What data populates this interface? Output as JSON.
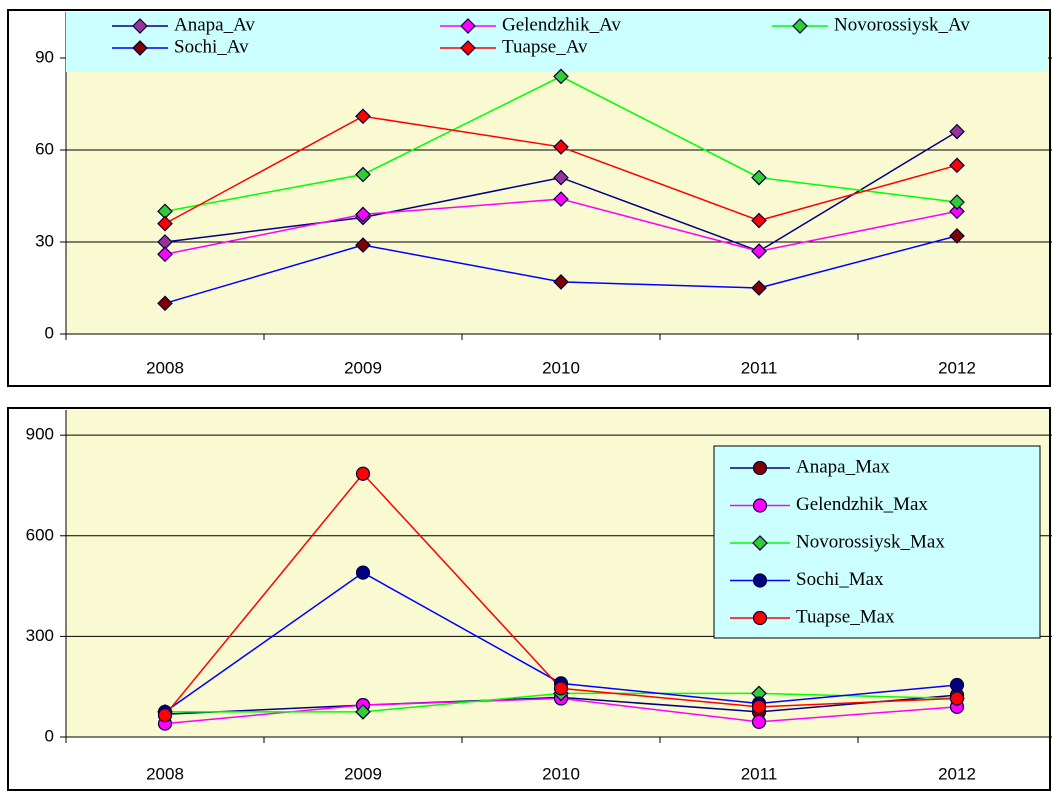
{
  "chart_data": [
    {
      "type": "line",
      "categories": [
        "2008",
        "2009",
        "2010",
        "2011",
        "2012"
      ],
      "ylim": [
        0,
        105
      ],
      "yticks": [
        0,
        30,
        60,
        90
      ],
      "grid": true,
      "legend": "top",
      "series": [
        {
          "name": "Anapa_Av",
          "color": "#000080",
          "marker_color": "#993399",
          "marker": "diamond",
          "values": [
            30,
            38,
            51,
            27,
            66
          ]
        },
        {
          "name": "Gelendzhik_Av",
          "color": "#ff00ff",
          "marker_color": "#ff00ff",
          "marker": "diamond",
          "values": [
            26,
            39,
            44,
            27,
            40
          ]
        },
        {
          "name": "Novorossiysk_Av",
          "color": "#00ff00",
          "marker_color": "#33cc33",
          "marker": "diamond",
          "values": [
            40,
            52,
            84,
            51,
            43
          ]
        },
        {
          "name": "Sochi_Av",
          "color": "#0000ff",
          "marker_color": "#800000",
          "marker": "diamond",
          "values": [
            10,
            29,
            17,
            15,
            32
          ]
        },
        {
          "name": "Tuapse_Av",
          "color": "#ff0000",
          "marker_color": "#ff0000",
          "marker": "diamond",
          "values": [
            36,
            71,
            61,
            37,
            55
          ]
        }
      ]
    },
    {
      "type": "line",
      "categories": [
        "2008",
        "2009",
        "2010",
        "2011",
        "2012"
      ],
      "ylim": [
        0,
        975
      ],
      "yticks": [
        0,
        300,
        600,
        900
      ],
      "grid": true,
      "legend": "right",
      "series": [
        {
          "name": "Anapa_Max",
          "color": "#000080",
          "marker_color": "#800000",
          "marker": "circle",
          "values": [
            68,
            95,
            118,
            75,
            125
          ]
        },
        {
          "name": "Gelendzhik_Max",
          "color": "#ff00ff",
          "marker_color": "#ff00ff",
          "marker": "circle",
          "values": [
            40,
            95,
            115,
            45,
            90
          ]
        },
        {
          "name": "Novorossiysk_Max",
          "color": "#00ff00",
          "marker_color": "#33cc33",
          "marker": "diamond",
          "values": [
            75,
            75,
            130,
            130,
            115
          ]
        },
        {
          "name": "Sochi_Max",
          "color": "#0000ff",
          "marker_color": "#000080",
          "marker": "circle",
          "values": [
            75,
            490,
            160,
            100,
            155
          ]
        },
        {
          "name": "Tuapse_Max",
          "color": "#ff0000",
          "marker_color": "#ff0000",
          "marker": "circle",
          "values": [
            65,
            785,
            145,
            90,
            115
          ]
        }
      ]
    }
  ]
}
